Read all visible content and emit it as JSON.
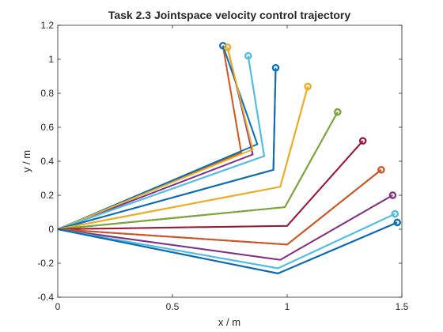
{
  "chart_data": {
    "type": "line",
    "title": "Task 2.3 Jointspace velocity control trajectory",
    "xlabel": "x / m",
    "ylabel": "y / m",
    "xlim": [
      0,
      1.5
    ],
    "ylim": [
      -0.4,
      1.2
    ],
    "xticks": [
      0,
      0.5,
      1,
      1.5
    ],
    "xtick_labels": [
      "0",
      "0.5",
      "1",
      "1.5"
    ],
    "yticks": [
      -0.4,
      -0.2,
      0,
      0.2,
      0.4,
      0.6,
      0.8,
      1,
      1.2
    ],
    "ytick_labels": [
      "-0.4",
      "-0.2",
      "0",
      "0.2",
      "0.4",
      "0.6",
      "0.8",
      "1",
      "1.2"
    ],
    "grid": false,
    "series": [
      {
        "color": "#D95319",
        "points": [
          [
            0,
            0
          ],
          [
            0.8,
            0.45
          ],
          [
            0.72,
            1.08
          ]
        ]
      },
      {
        "color": "#0072BD",
        "points": [
          [
            0,
            0
          ],
          [
            0.87,
            0.5
          ],
          [
            0.72,
            1.08
          ]
        ]
      },
      {
        "color": "#7E2F8E",
        "points": [
          [
            0,
            0
          ],
          [
            0.85,
            0.44
          ],
          [
            0.74,
            1.07
          ]
        ]
      },
      {
        "color": "#EDB120",
        "points": [
          [
            0,
            0
          ],
          [
            0.85,
            0.47
          ],
          [
            0.74,
            1.07
          ]
        ]
      },
      {
        "color": "#77AC30",
        "points": [
          [
            0,
            0
          ],
          [
            0.9,
            0.43
          ],
          [
            0.83,
            1.02
          ]
        ]
      },
      {
        "color": "#4DBEEE",
        "points": [
          [
            0,
            0
          ],
          [
            0.9,
            0.43
          ],
          [
            0.83,
            1.02
          ]
        ]
      },
      {
        "color": "#A2142F",
        "points": [
          [
            0,
            0
          ],
          [
            0.94,
            0.35
          ],
          [
            0.95,
            0.95
          ]
        ]
      },
      {
        "color": "#0072BD",
        "points": [
          [
            0,
            0
          ],
          [
            0.94,
            0.35
          ],
          [
            0.95,
            0.95
          ]
        ]
      },
      {
        "color": "#D95319",
        "points": [
          [
            0,
            0
          ],
          [
            0.97,
            0.25
          ],
          [
            1.09,
            0.84
          ]
        ]
      },
      {
        "color": "#EDB120",
        "points": [
          [
            0,
            0
          ],
          [
            0.97,
            0.25
          ],
          [
            1.09,
            0.84
          ]
        ]
      },
      {
        "color": "#7E2F8E",
        "points": [
          [
            0,
            0
          ],
          [
            0.99,
            0.13
          ],
          [
            1.22,
            0.69
          ]
        ]
      },
      {
        "color": "#77AC30",
        "points": [
          [
            0,
            0
          ],
          [
            0.99,
            0.13
          ],
          [
            1.22,
            0.69
          ]
        ]
      },
      {
        "color": "#4DBEEE",
        "points": [
          [
            0,
            0
          ],
          [
            1.0,
            0.02
          ],
          [
            1.33,
            0.52
          ]
        ]
      },
      {
        "color": "#A2142F",
        "points": [
          [
            0,
            0
          ],
          [
            1.0,
            0.02
          ],
          [
            1.33,
            0.52
          ]
        ]
      },
      {
        "color": "#0072BD",
        "points": [
          [
            0,
            0
          ],
          [
            1.0,
            -0.09
          ],
          [
            1.41,
            0.35
          ]
        ]
      },
      {
        "color": "#D95319",
        "points": [
          [
            0,
            0
          ],
          [
            1.0,
            -0.09
          ],
          [
            1.41,
            0.35
          ]
        ]
      },
      {
        "color": "#EDB120",
        "points": [
          [
            0,
            0
          ],
          [
            0.97,
            -0.18
          ],
          [
            1.46,
            0.2
          ]
        ]
      },
      {
        "color": "#7E2F8E",
        "points": [
          [
            0,
            0
          ],
          [
            0.97,
            -0.18
          ],
          [
            1.46,
            0.2
          ]
        ]
      },
      {
        "color": "#77AC30",
        "points": [
          [
            0,
            0
          ],
          [
            0.96,
            -0.23
          ],
          [
            1.47,
            0.09
          ]
        ]
      },
      {
        "color": "#4DBEEE",
        "points": [
          [
            0,
            0
          ],
          [
            0.96,
            -0.23
          ],
          [
            1.47,
            0.09
          ]
        ]
      },
      {
        "color": "#A2142F",
        "points": [
          [
            0,
            0
          ],
          [
            0.96,
            -0.26
          ],
          [
            1.48,
            0.04
          ]
        ]
      },
      {
        "color": "#0072BD",
        "points": [
          [
            0,
            0
          ],
          [
            0.96,
            -0.26
          ],
          [
            1.48,
            0.04
          ]
        ]
      }
    ]
  }
}
